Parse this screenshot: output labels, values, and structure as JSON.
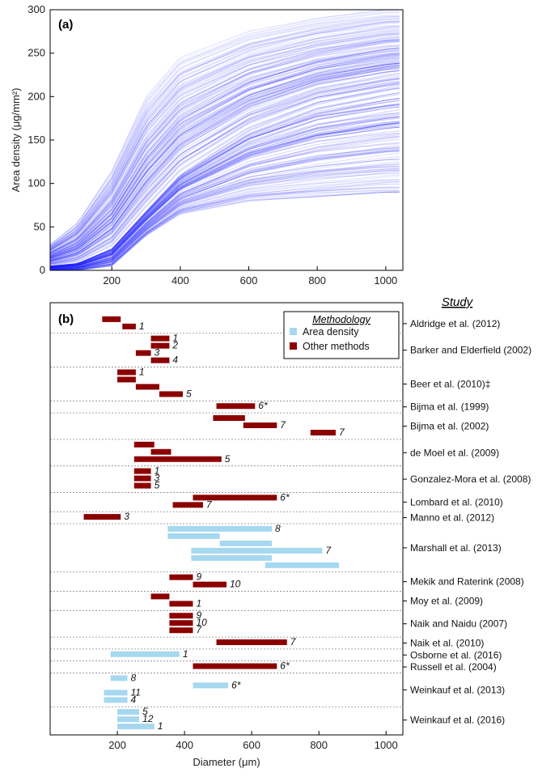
{
  "chart_data": [
    {
      "type": "line",
      "panel_label": "(a)",
      "xlabel": "",
      "ylabel": "Area density (μg/mm²)",
      "xlim": [
        20,
        1050
      ],
      "ylim": [
        0,
        300
      ],
      "xticks": [
        200,
        400,
        600,
        800,
        1000
      ],
      "yticks": [
        0,
        50,
        100,
        150,
        200,
        250,
        300
      ],
      "grid": false,
      "color": "#1a1aff",
      "series_description": "many overlapping curves of area density vs diameter",
      "envelope": {
        "x": [
          20,
          100,
          200,
          300,
          400,
          600,
          800,
          1000,
          1050
        ],
        "median": [
          5,
          8,
          25,
          68,
          110,
          160,
          190,
          205,
          208
        ],
        "upper": [
          30,
          55,
          115,
          200,
          245,
          275,
          290,
          300,
          300
        ],
        "lower": [
          0,
          0,
          5,
          40,
          65,
          80,
          85,
          90,
          90
        ]
      }
    },
    {
      "type": "bar",
      "orientation": "horizontal-range",
      "panel_label": "(b)",
      "xlabel": "Diameter (μm)",
      "ylabel": "Study",
      "xlim": [
        0,
        1050
      ],
      "xticks": [
        200,
        400,
        600,
        800,
        1000
      ],
      "legend": {
        "title": "Methodology",
        "position": "top-right",
        "items": [
          {
            "label": "Area density",
            "color": "#a6d8f0"
          },
          {
            "label": "Other methods",
            "color": "#8b0000"
          }
        ]
      },
      "studies": [
        {
          "name": "Aldridge et al. (2012)",
          "bars": [
            {
              "x0": 155,
              "x1": 210,
              "m": "o",
              "note": ""
            },
            {
              "x0": 215,
              "x1": 255,
              "m": "o",
              "note": "1"
            }
          ]
        },
        {
          "name": "Barker and Elderfield (2002)",
          "bars": [
            {
              "x0": 300,
              "x1": 355,
              "m": "o",
              "note": "1"
            },
            {
              "x0": 300,
              "x1": 355,
              "m": "o",
              "note": "2"
            },
            {
              "x0": 255,
              "x1": 300,
              "m": "o",
              "note": "3"
            },
            {
              "x0": 300,
              "x1": 355,
              "m": "o",
              "note": "4"
            }
          ]
        },
        {
          "name": "Beer et al. (2010)‡",
          "bars": [
            {
              "x0": 200,
              "x1": 255,
              "m": "o",
              "note": "1"
            },
            {
              "x0": 200,
              "x1": 255,
              "m": "o",
              "note": ""
            },
            {
              "x0": 255,
              "x1": 325,
              "m": "o",
              "note": ""
            },
            {
              "x0": 325,
              "x1": 395,
              "m": "o",
              "note": "5"
            }
          ]
        },
        {
          "name": "Bijma et al. (1999)",
          "bars": [
            {
              "x0": 495,
              "x1": 610,
              "m": "o",
              "note": "6*"
            }
          ]
        },
        {
          "name": "Bijma et al. (2002)",
          "bars": [
            {
              "x0": 485,
              "x1": 580,
              "m": "o",
              "note": ""
            },
            {
              "x0": 575,
              "x1": 675,
              "m": "o",
              "note": "7"
            },
            {
              "x0": 775,
              "x1": 850,
              "m": "o",
              "note": "7"
            }
          ]
        },
        {
          "name": "de Moel et al. (2009)",
          "bars": [
            {
              "x0": 250,
              "x1": 310,
              "m": "o",
              "note": ""
            },
            {
              "x0": 300,
              "x1": 360,
              "m": "o",
              "note": ""
            },
            {
              "x0": 250,
              "x1": 510,
              "m": "o",
              "note": "5"
            }
          ]
        },
        {
          "name": "Gonzalez-Mora et al. (2008)",
          "bars": [
            {
              "x0": 250,
              "x1": 300,
              "m": "o",
              "note": "1"
            },
            {
              "x0": 250,
              "x1": 300,
              "m": "o",
              "note": "3"
            },
            {
              "x0": 250,
              "x1": 300,
              "m": "o",
              "note": "5"
            }
          ]
        },
        {
          "name": "Lombard et al. (2010)",
          "bars": [
            {
              "x0": 425,
              "x1": 675,
              "m": "o",
              "note": "6*"
            },
            {
              "x0": 365,
              "x1": 455,
              "m": "o",
              "note": "7"
            }
          ]
        },
        {
          "name": "Manno et al. (2012)",
          "bars": [
            {
              "x0": 100,
              "x1": 210,
              "m": "o",
              "note": "3"
            }
          ]
        },
        {
          "name": "Marshall et al. (2013)",
          "bars": [
            {
              "x0": 350,
              "x1": 660,
              "m": "a",
              "note": "8"
            },
            {
              "x0": 350,
              "x1": 505,
              "m": "a",
              "note": ""
            },
            {
              "x0": 505,
              "x1": 660,
              "m": "a",
              "note": ""
            },
            {
              "x0": 420,
              "x1": 810,
              "m": "a",
              "note": "7"
            },
            {
              "x0": 420,
              "x1": 660,
              "m": "a",
              "note": ""
            },
            {
              "x0": 640,
              "x1": 860,
              "m": "a",
              "note": ""
            }
          ]
        },
        {
          "name": "Mekik and Raterink (2008)",
          "bars": [
            {
              "x0": 355,
              "x1": 425,
              "m": "o",
              "note": "9"
            },
            {
              "x0": 425,
              "x1": 525,
              "m": "o",
              "note": "10"
            }
          ]
        },
        {
          "name": "Moy et al. (2009)",
          "bars": [
            {
              "x0": 300,
              "x1": 355,
              "m": "o",
              "note": ""
            },
            {
              "x0": 355,
              "x1": 425,
              "m": "o",
              "note": "1"
            }
          ]
        },
        {
          "name": "Naik and Naidu (2007)",
          "bars": [
            {
              "x0": 355,
              "x1": 425,
              "m": "o",
              "note": "9"
            },
            {
              "x0": 355,
              "x1": 425,
              "m": "o",
              "note": "10"
            },
            {
              "x0": 355,
              "x1": 425,
              "m": "o",
              "note": "7"
            }
          ]
        },
        {
          "name": "Naik et al. (2010)",
          "bars": [
            {
              "x0": 495,
              "x1": 705,
              "m": "o",
              "note": "7"
            }
          ]
        },
        {
          "name": "Osborne et al. (2016)",
          "bars": [
            {
              "x0": 180,
              "x1": 385,
              "m": "a",
              "note": "1"
            }
          ]
        },
        {
          "name": "Russell et al. (2004)",
          "bars": [
            {
              "x0": 425,
              "x1": 675,
              "m": "o",
              "note": "6*"
            }
          ]
        },
        {
          "name": "Weinkauf et al. (2013)",
          "bars": [
            {
              "x0": 180,
              "x1": 230,
              "m": "a",
              "note": "8"
            },
            {
              "x0": 425,
              "x1": 530,
              "m": "a",
              "note": "6*"
            },
            {
              "x0": 160,
              "x1": 230,
              "m": "a",
              "note": "11"
            },
            {
              "x0": 160,
              "x1": 230,
              "m": "a",
              "note": "4"
            }
          ]
        },
        {
          "name": "Weinkauf et al. (2016)",
          "bars": [
            {
              "x0": 200,
              "x1": 265,
              "m": "a",
              "note": "5"
            },
            {
              "x0": 200,
              "x1": 265,
              "m": "a",
              "note": "12"
            },
            {
              "x0": 200,
              "x1": 310,
              "m": "a",
              "note": "1"
            }
          ]
        }
      ]
    }
  ]
}
